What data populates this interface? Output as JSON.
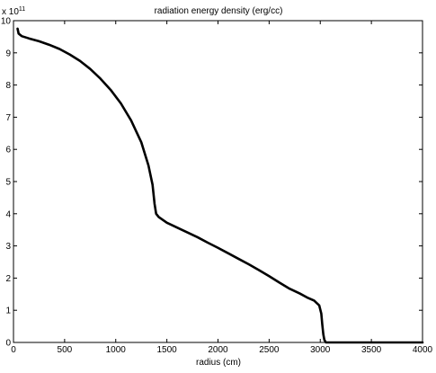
{
  "chart_data": {
    "type": "line",
    "title": "radiation energy density (erg/cc)",
    "xlabel": "radius (cm)",
    "ylabel": "",
    "xlim": [
      0,
      4000
    ],
    "ylim": [
      0,
      10
    ],
    "xticks": [
      "0",
      "500",
      "1000",
      "1500",
      "2000",
      "2500",
      "3000",
      "3500",
      "4000"
    ],
    "yticks": [
      "0",
      "1",
      "2",
      "3",
      "4",
      "5",
      "6",
      "7",
      "8",
      "9",
      "10"
    ],
    "y_multiplier": {
      "base": "x 10",
      "exponent": "11"
    },
    "grid": false,
    "line_color": "#000000",
    "series": [
      {
        "values": [
          [
            40,
            9.75
          ],
          [
            50,
            9.6
          ],
          [
            80,
            9.52
          ],
          [
            150,
            9.45
          ],
          [
            250,
            9.36
          ],
          [
            350,
            9.25
          ],
          [
            450,
            9.12
          ],
          [
            550,
            8.95
          ],
          [
            650,
            8.75
          ],
          [
            750,
            8.5
          ],
          [
            850,
            8.2
          ],
          [
            950,
            7.85
          ],
          [
            1050,
            7.43
          ],
          [
            1150,
            6.9
          ],
          [
            1250,
            6.22
          ],
          [
            1320,
            5.5
          ],
          [
            1360,
            4.9
          ],
          [
            1380,
            4.3
          ],
          [
            1395,
            4.0
          ],
          [
            1420,
            3.9
          ],
          [
            1500,
            3.72
          ],
          [
            1600,
            3.57
          ],
          [
            1700,
            3.42
          ],
          [
            1800,
            3.27
          ],
          [
            1900,
            3.1
          ],
          [
            2000,
            2.94
          ],
          [
            2100,
            2.77
          ],
          [
            2200,
            2.6
          ],
          [
            2300,
            2.43
          ],
          [
            2400,
            2.25
          ],
          [
            2500,
            2.06
          ],
          [
            2600,
            1.86
          ],
          [
            2700,
            1.67
          ],
          [
            2800,
            1.52
          ],
          [
            2870,
            1.4
          ],
          [
            2940,
            1.3
          ],
          [
            2990,
            1.15
          ],
          [
            3010,
            0.9
          ],
          [
            3020,
            0.55
          ],
          [
            3030,
            0.25
          ],
          [
            3040,
            0.08
          ],
          [
            3055,
            0.0
          ],
          [
            3100,
            0.0
          ],
          [
            3500,
            0.0
          ],
          [
            4000,
            0.0
          ]
        ]
      }
    ]
  }
}
